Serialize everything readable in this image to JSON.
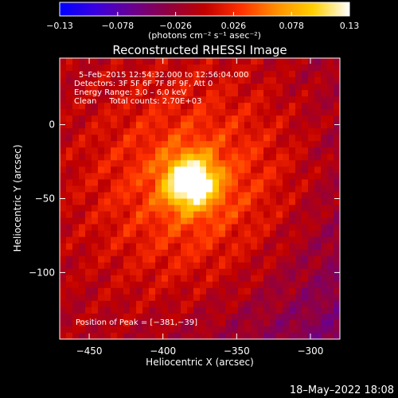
{
  "chart_data": {
    "type": "heatmap",
    "title": "Reconstructed RHESSI Image",
    "xlabel": "Heliocentric X (arcsec)",
    "ylabel": "Heliocentric Y (arcsec)",
    "xlim": [
      -470,
      -280
    ],
    "ylim": [
      -145,
      45
    ],
    "x_ticks": [
      -450,
      -400,
      -350,
      -300
    ],
    "y_ticks": [
      0,
      -50,
      -100
    ],
    "x_tick_labels": [
      "−450",
      "−400",
      "−350",
      "−300"
    ],
    "y_tick_labels": [
      "0",
      "−50",
      "−100"
    ],
    "peak": {
      "x": -381,
      "y": -39
    },
    "info_lines": [
      "5–Feb–2015 12:54:32.000 to 12:56:04.000",
      "Detectors: 3F 5F 6F 7F 8F 9F, Att 0",
      "Energy Range: 3.0 – 6.0 keV",
      "Clean     Total counts: 2.70E+03"
    ],
    "peak_label": "Position of Peak = [−381,−39]",
    "colorbar": {
      "range": [
        -0.13,
        0.13
      ],
      "ticks": [
        -0.13,
        -0.078,
        -0.026,
        0.026,
        0.078,
        0.13
      ],
      "tick_labels": [
        "−0.13",
        "−0.078",
        "−0.026",
        "0.026",
        "0.078",
        "0.13"
      ],
      "unit_label": "(photons cm⁻² s⁻¹ asec⁻²)",
      "colors": [
        "#0000ff",
        "#3a00e0",
        "#6a0090",
        "#900040",
        "#c00000",
        "#ff3000",
        "#ff9000",
        "#ffd000",
        "#ffffff"
      ]
    }
  },
  "footer": {
    "timestamp": "18–May–2022 18:08"
  }
}
